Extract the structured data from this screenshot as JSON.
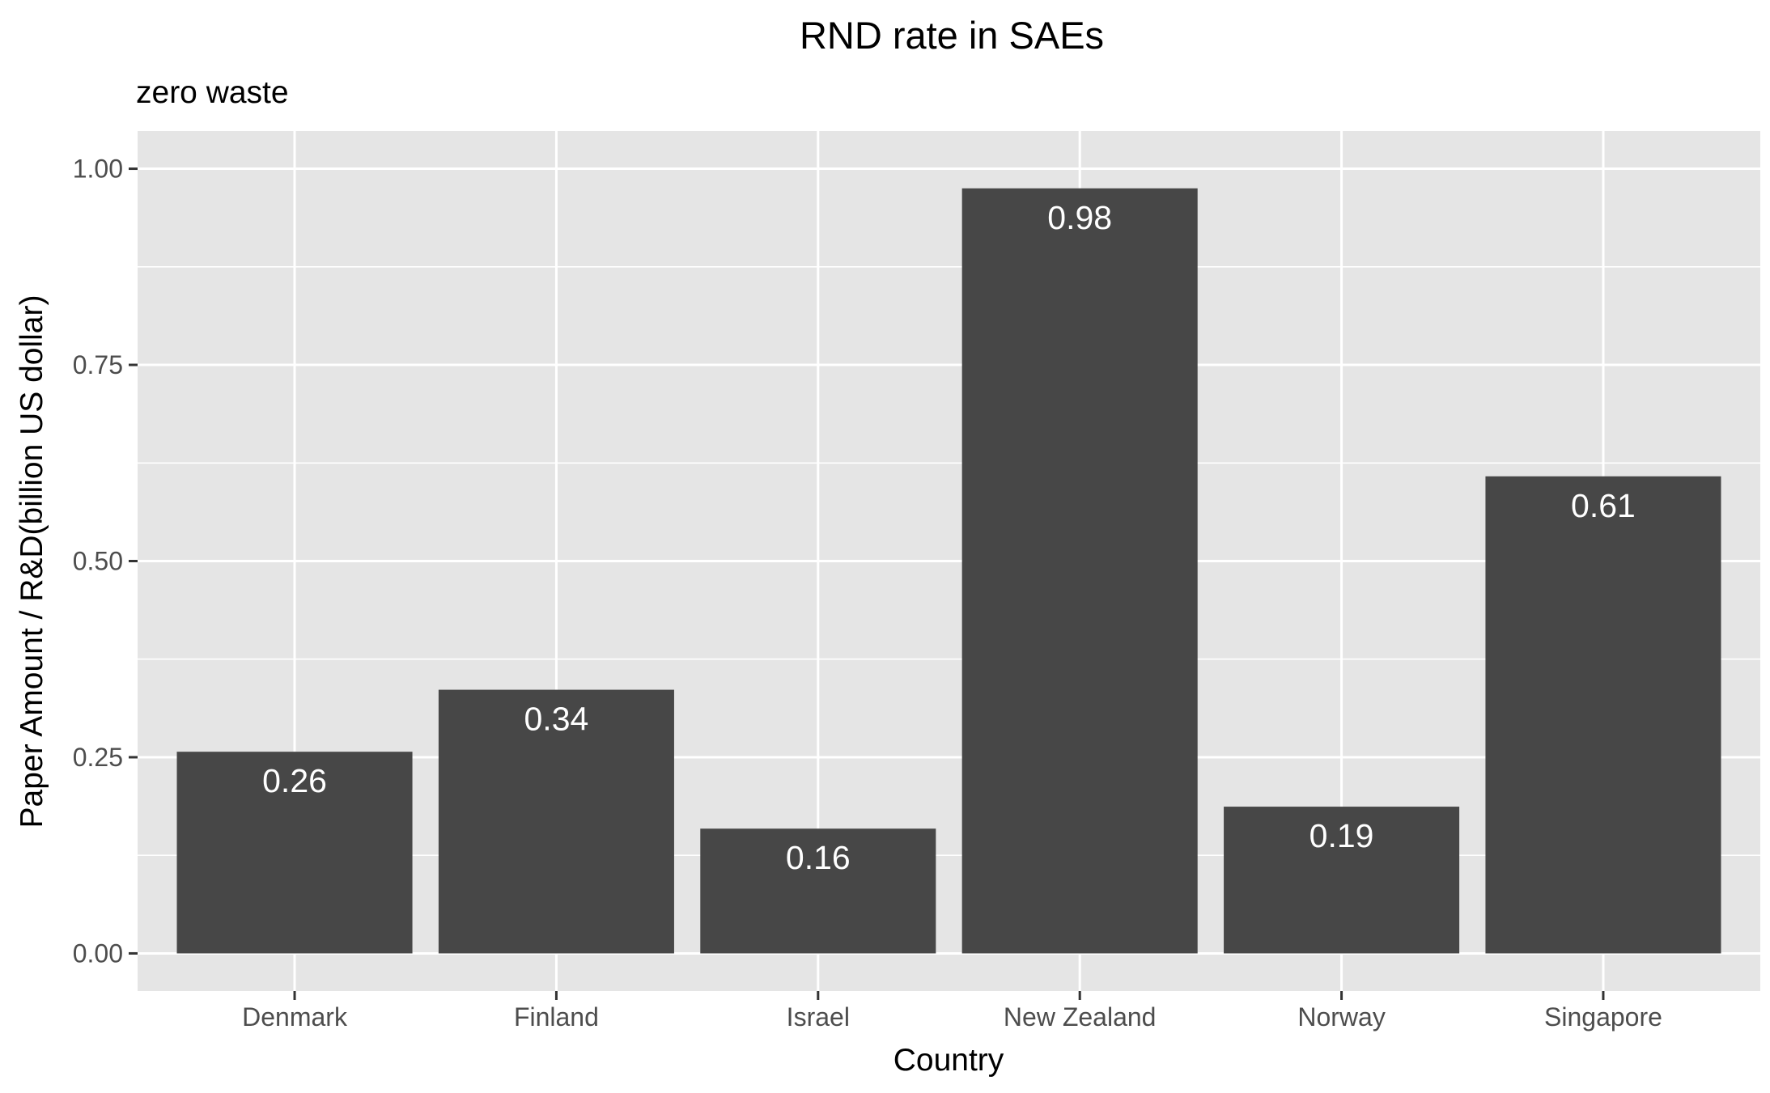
{
  "chart_data": {
    "type": "bar",
    "title": "RND rate in SAEs",
    "subtitle": "zero waste",
    "xlabel": "Country",
    "ylabel": "Paper Amount / R&D(billion US dollar)",
    "categories": [
      "Denmark",
      "Finland",
      "Israel",
      "New Zealand",
      "Norway",
      "Singapore"
    ],
    "values": [
      0.257,
      0.336,
      0.159,
      0.975,
      0.187,
      0.608
    ],
    "data_labels": [
      "0.26",
      "0.34",
      "0.16",
      "0.98",
      "0.19",
      "0.61"
    ],
    "ylim": [
      -0.048,
      1.048
    ],
    "yticks": [
      0,
      0.25,
      0.5,
      0.75,
      1.0
    ],
    "ytick_labels": [
      "0.00",
      "0.25",
      "0.50",
      "0.75",
      "1.00"
    ],
    "grid": true,
    "legend": "none",
    "colors": {
      "bar": "#474747",
      "panel_background": "#e5e5e5",
      "grid": "#ffffff",
      "data_label": "#ffffff",
      "tick_label": "#4d4d4d"
    }
  }
}
